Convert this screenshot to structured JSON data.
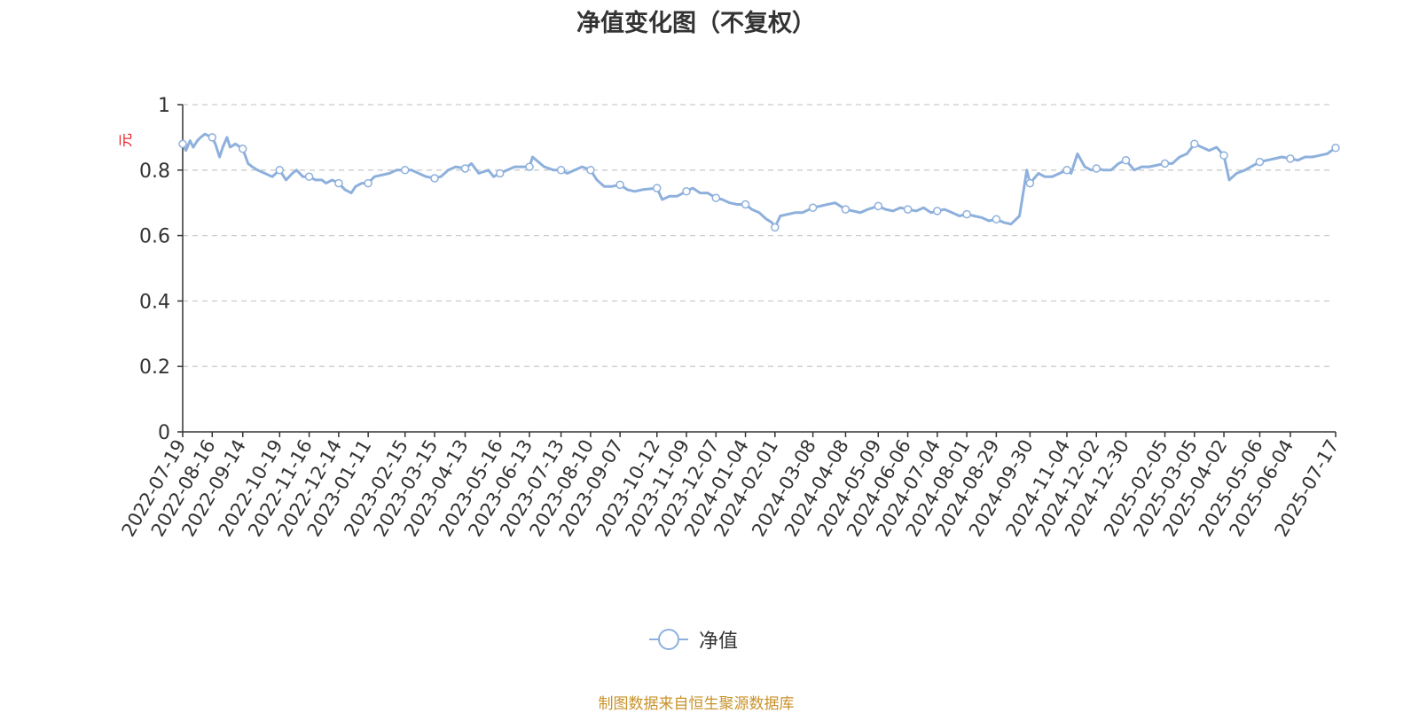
{
  "title": "净值变化图（不复权）",
  "source_note": "制图数据来自恒生聚源数据库",
  "colors": {
    "line": "#8eb0dc",
    "title": "#333333",
    "axis": "#333333",
    "ylabel": "#e8141e",
    "grid": "#cccccc",
    "source": "#c8922a"
  },
  "chart_data": {
    "type": "line",
    "title": "净值变化图（不复权）",
    "xlabel": "",
    "ylabel": "元",
    "ylim": [
      0,
      1
    ],
    "yticks": [
      "0",
      "0.2",
      "0.4",
      "0.6",
      "0.8",
      "1"
    ],
    "grid": true,
    "legend_position": "bottom-center",
    "x_tick_labels": [
      "2022-07-19",
      "2022-08-16",
      "2022-09-14",
      "2022-10-19",
      "2022-11-16",
      "2022-12-14",
      "2023-01-11",
      "2023-02-15",
      "2023-03-15",
      "2023-04-13",
      "2023-05-16",
      "2023-06-13",
      "2023-07-13",
      "2023-08-10",
      "2023-09-07",
      "2023-10-12",
      "2023-11-09",
      "2023-12-07",
      "2024-01-04",
      "2024-02-01",
      "2024-03-08",
      "2024-04-08",
      "2024-05-09",
      "2024-06-06",
      "2024-07-04",
      "2024-08-01",
      "2024-08-29",
      "2024-09-30",
      "2024-11-04",
      "2024-12-02",
      "2024-12-30",
      "2025-02-05",
      "2025-03-05",
      "2025-04-02",
      "2025-05-06",
      "2025-06-04",
      "2025-07-17"
    ],
    "series": [
      {
        "name": "净值",
        "x": [
          "2022-07-19",
          "2022-07-22",
          "2022-07-26",
          "2022-07-29",
          "2022-08-02",
          "2022-08-05",
          "2022-08-09",
          "2022-08-16",
          "2022-08-19",
          "2022-08-23",
          "2022-08-26",
          "2022-08-30",
          "2022-09-02",
          "2022-09-07",
          "2022-09-14",
          "2022-09-19",
          "2022-09-23",
          "2022-09-28",
          "2022-10-12",
          "2022-10-19",
          "2022-10-25",
          "2022-10-31",
          "2022-11-04",
          "2022-11-10",
          "2022-11-16",
          "2022-11-22",
          "2022-11-28",
          "2022-12-02",
          "2022-12-08",
          "2022-12-14",
          "2022-12-20",
          "2022-12-26",
          "2022-12-30",
          "2023-01-05",
          "2023-01-11",
          "2023-01-17",
          "2023-01-31",
          "2023-02-07",
          "2023-02-15",
          "2023-02-21",
          "2023-02-28",
          "2023-03-07",
          "2023-03-15",
          "2023-03-21",
          "2023-03-28",
          "2023-04-04",
          "2023-04-13",
          "2023-04-19",
          "2023-04-26",
          "2023-05-05",
          "2023-05-10",
          "2023-05-16",
          "2023-05-23",
          "2023-05-30",
          "2023-06-06",
          "2023-06-13",
          "2023-06-16",
          "2023-06-27",
          "2023-07-06",
          "2023-07-13",
          "2023-07-19",
          "2023-07-26",
          "2023-08-02",
          "2023-08-10",
          "2023-08-16",
          "2023-08-23",
          "2023-08-30",
          "2023-09-07",
          "2023-09-14",
          "2023-09-21",
          "2023-09-28",
          "2023-10-12",
          "2023-10-17",
          "2023-10-24",
          "2023-10-31",
          "2023-11-09",
          "2023-11-15",
          "2023-11-22",
          "2023-11-29",
          "2023-12-07",
          "2023-12-13",
          "2023-12-20",
          "2023-12-27",
          "2024-01-04",
          "2024-01-10",
          "2024-01-17",
          "2024-01-24",
          "2024-01-29",
          "2024-02-01",
          "2024-02-06",
          "2024-02-20",
          "2024-02-27",
          "2024-03-08",
          "2024-03-15",
          "2024-03-22",
          "2024-03-29",
          "2024-04-08",
          "2024-04-15",
          "2024-04-22",
          "2024-04-29",
          "2024-05-09",
          "2024-05-16",
          "2024-05-23",
          "2024-05-30",
          "2024-06-06",
          "2024-06-14",
          "2024-06-21",
          "2024-06-28",
          "2024-07-04",
          "2024-07-11",
          "2024-07-18",
          "2024-07-25",
          "2024-08-01",
          "2024-08-08",
          "2024-08-15",
          "2024-08-22",
          "2024-08-29",
          "2024-09-05",
          "2024-09-12",
          "2024-09-20",
          "2024-09-24",
          "2024-09-27",
          "2024-09-30",
          "2024-10-08",
          "2024-10-14",
          "2024-10-21",
          "2024-10-28",
          "2024-11-04",
          "2024-11-08",
          "2024-11-14",
          "2024-11-21",
          "2024-11-27",
          "2024-12-02",
          "2024-12-09",
          "2024-12-16",
          "2024-12-23",
          "2024-12-30",
          "2025-01-07",
          "2025-01-14",
          "2025-01-21",
          "2025-02-05",
          "2025-02-12",
          "2025-02-19",
          "2025-02-26",
          "2025-03-05",
          "2025-03-12",
          "2025-03-19",
          "2025-03-26",
          "2025-04-02",
          "2025-04-07",
          "2025-04-14",
          "2025-04-22",
          "2025-05-06",
          "2025-05-13",
          "2025-05-20",
          "2025-05-27",
          "2025-06-04",
          "2025-06-11",
          "2025-06-18",
          "2025-06-25",
          "2025-07-02",
          "2025-07-09",
          "2025-07-17"
        ],
        "values": [
          0.88,
          0.86,
          0.89,
          0.87,
          0.89,
          0.9,
          0.91,
          0.9,
          0.88,
          0.84,
          0.87,
          0.9,
          0.87,
          0.88,
          0.865,
          0.82,
          0.81,
          0.8,
          0.78,
          0.8,
          0.77,
          0.79,
          0.8,
          0.78,
          0.78,
          0.77,
          0.77,
          0.76,
          0.77,
          0.76,
          0.74,
          0.73,
          0.75,
          0.76,
          0.76,
          0.78,
          0.79,
          0.8,
          0.8,
          0.8,
          0.79,
          0.78,
          0.775,
          0.78,
          0.8,
          0.81,
          0.805,
          0.82,
          0.79,
          0.8,
          0.78,
          0.79,
          0.8,
          0.81,
          0.81,
          0.81,
          0.84,
          0.81,
          0.8,
          0.8,
          0.79,
          0.8,
          0.81,
          0.8,
          0.77,
          0.75,
          0.75,
          0.755,
          0.74,
          0.735,
          0.74,
          0.745,
          0.71,
          0.72,
          0.72,
          0.735,
          0.745,
          0.73,
          0.73,
          0.715,
          0.71,
          0.7,
          0.695,
          0.695,
          0.68,
          0.67,
          0.65,
          0.64,
          0.625,
          0.66,
          0.67,
          0.67,
          0.685,
          0.69,
          0.695,
          0.7,
          0.68,
          0.675,
          0.67,
          0.68,
          0.69,
          0.68,
          0.675,
          0.685,
          0.68,
          0.675,
          0.685,
          0.67,
          0.675,
          0.68,
          0.67,
          0.66,
          0.665,
          0.66,
          0.655,
          0.645,
          0.65,
          0.64,
          0.635,
          0.66,
          0.74,
          0.8,
          0.76,
          0.79,
          0.78,
          0.78,
          0.79,
          0.8,
          0.79,
          0.85,
          0.81,
          0.8,
          0.805,
          0.8,
          0.8,
          0.82,
          0.83,
          0.8,
          0.81,
          0.81,
          0.82,
          0.82,
          0.84,
          0.85,
          0.88,
          0.87,
          0.86,
          0.87,
          0.845,
          0.77,
          0.79,
          0.8,
          0.825,
          0.83,
          0.835,
          0.84,
          0.835,
          0.83,
          0.84,
          0.84,
          0.845,
          0.85,
          0.868
        ]
      }
    ]
  }
}
